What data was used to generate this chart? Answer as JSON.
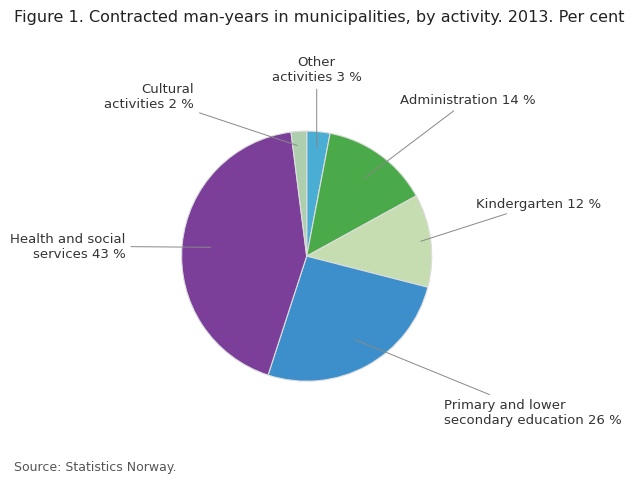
{
  "title": "Figure 1. Contracted man-years in municipalities, by activity. 2013. Per cent",
  "slices": [
    {
      "label": "Other\nactivities 3 %",
      "value": 3,
      "color": "#4aaed4"
    },
    {
      "label": "Administration 14 %",
      "value": 14,
      "color": "#4aaa4a"
    },
    {
      "label": "Kindergarten 12 %",
      "value": 12,
      "color": "#c5ddb0"
    },
    {
      "label": "Primary and lower\nsecondary education 26 %",
      "value": 26,
      "color": "#3d8fcc"
    },
    {
      "label": "Health and social\nservices 43 %",
      "value": 43,
      "color": "#7b3f99"
    },
    {
      "label": "Cultural\nactivities 2 %",
      "value": 2,
      "color": "#aecfae"
    }
  ],
  "source": "Source: Statistics Norway.",
  "title_fontsize": 11.5,
  "label_fontsize": 9.5,
  "source_fontsize": 9,
  "background_color": "#ffffff",
  "startangle": 90
}
